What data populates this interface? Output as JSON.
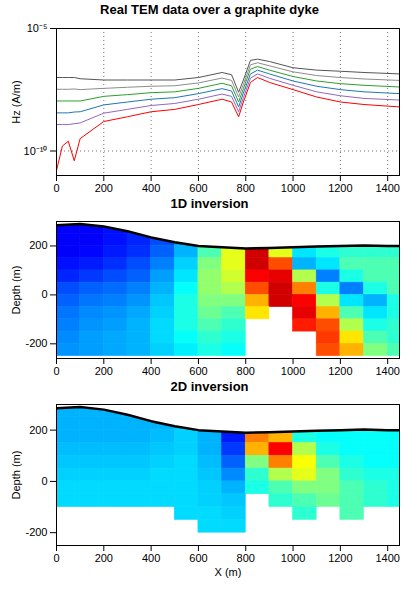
{
  "chart_data": [
    {
      "type": "line",
      "title": "Real TEM data over a graphite dyke",
      "x": [
        0,
        25,
        50,
        75,
        100,
        200,
        300,
        400,
        500,
        600,
        700,
        740,
        770,
        790,
        820,
        850,
        900,
        1000,
        1100,
        1200,
        1300,
        1450
      ],
      "series": [
        {
          "color": "#555555",
          "values": [
            1e-07,
            1e-07,
            1e-07,
            1e-07,
            8.9e-08,
            7.9e-08,
            7.9e-08,
            7.9e-08,
            7.9e-08,
            1e-07,
            1.6e-07,
            1.3e-07,
            2.5e-08,
            7.9e-08,
            5e-07,
            5.6e-07,
            4.5e-07,
            2.5e-07,
            2e-07,
            1.8e-07,
            1.6e-07,
            1.4e-07
          ]
        },
        {
          "color": "#8c8c8c",
          "values": [
            3.3e-08,
            3.3e-08,
            3.3e-08,
            3.4e-08,
            3.2e-08,
            3.6e-08,
            4e-08,
            4.4e-08,
            4.6e-08,
            6e-08,
            9.5e-08,
            7.6e-08,
            1.6e-08,
            5.2e-08,
            3.3e-07,
            4e-07,
            3e-07,
            1.7e-07,
            1.2e-07,
            1e-07,
            8.7e-08,
            7.6e-08
          ]
        },
        {
          "color": "#2ca02c",
          "values": [
            1.1e-08,
            1.1e-08,
            1.1e-08,
            1.1e-08,
            1.1e-08,
            1.7e-08,
            2e-08,
            2.4e-08,
            2.6e-08,
            3.6e-08,
            5.8e-08,
            4.6e-08,
            1e-08,
            3.5e-08,
            2.2e-07,
            2.8e-07,
            2e-07,
            1.1e-07,
            7.2e-08,
            5.6e-08,
            4.8e-08,
            4.1e-08
          ]
        },
        {
          "color": "#1f77b4",
          "values": [
            3.6e-09,
            3.6e-09,
            3.6e-09,
            3.9e-09,
            4e-09,
            7.6e-09,
            1e-08,
            1.3e-08,
            1.5e-08,
            2.2e-08,
            3.5e-08,
            2.8e-08,
            6.3e-09,
            2.3e-08,
            1.4e-07,
            2e-07,
            1.4e-07,
            7.2e-08,
            4.4e-08,
            3.2e-08,
            2.6e-08,
            2.2e-08
          ]
        },
        {
          "color": "#9467bd",
          "values": [
            1.2e-09,
            1.2e-09,
            1.2e-09,
            1.3e-09,
            1.4e-09,
            3.5e-09,
            5e-09,
            7.2e-09,
            8.7e-09,
            1.3e-08,
            2.1e-08,
            1.7e-08,
            4e-09,
            1.5e-08,
            9.5e-08,
            1.4e-07,
            9.3e-08,
            4.8e-08,
            2.6e-08,
            1.8e-08,
            1.4e-08,
            1.2e-08
          ]
        },
        {
          "color": "#ff0000",
          "values": [
            1.6e-11,
            1.6e-10,
            2.5e-10,
            4e-11,
            3.2e-10,
            1.6e-09,
            2.5e-09,
            4e-09,
            5e-09,
            7.9e-09,
            1.3e-08,
            1e-08,
            2.5e-09,
            1e-08,
            6.3e-08,
            1e-07,
            6.3e-08,
            3.2e-08,
            1.6e-08,
            1e-08,
            7.9e-09,
            6.3e-09
          ]
        }
      ],
      "xlim": [
        0,
        1450
      ],
      "xticks": [
        0,
        200,
        400,
        600,
        800,
        1000,
        1200,
        1400
      ],
      "ylim": [
        1e-11,
        1e-05
      ],
      "yticks": [
        {
          "value": 1e-10,
          "label": "10⁻¹⁰"
        },
        {
          "value": 1e-05,
          "label": "10⁻⁵"
        }
      ],
      "y_label": "Hz (A/m)",
      "log": "y",
      "grid": true
    },
    {
      "type": "heatmap",
      "title": "1D inversion",
      "x": [
        50,
        150,
        250,
        350,
        450,
        550,
        650,
        750,
        850,
        950,
        1050,
        1150,
        1250,
        1350,
        1450
      ],
      "depth": [
        275,
        225,
        175,
        125,
        75,
        25,
        -25,
        -75,
        -125,
        -175,
        -225
      ],
      "cells": [
        [
          0.12,
          0.12,
          0.14,
          0.16,
          0.2,
          0.25,
          0.35,
          0.5,
          0.8,
          0.45,
          0.4,
          0.4,
          0.4,
          0.4,
          0.4
        ],
        [
          0.12,
          0.12,
          0.14,
          0.16,
          0.2,
          0.28,
          0.4,
          0.55,
          0.85,
          0.5,
          0.4,
          0.4,
          0.4,
          0.4,
          0.4
        ],
        [
          0.12,
          0.13,
          0.15,
          0.17,
          0.22,
          0.3,
          0.45,
          0.6,
          0.92,
          0.6,
          0.35,
          0.4,
          0.42,
          0.42,
          0.42
        ],
        [
          0.14,
          0.15,
          0.17,
          0.2,
          0.25,
          0.33,
          0.5,
          0.6,
          0.92,
          0.8,
          0.3,
          0.35,
          0.45,
          0.45,
          0.45
        ],
        [
          0.16,
          0.18,
          0.2,
          0.22,
          0.28,
          0.35,
          0.52,
          0.58,
          0.88,
          0.9,
          0.55,
          0.25,
          0.4,
          0.45,
          0.45
        ],
        [
          0.2,
          0.22,
          0.23,
          0.25,
          0.3,
          0.38,
          0.52,
          0.55,
          0.8,
          0.92,
          0.75,
          0.4,
          0.25,
          0.4,
          0.45
        ],
        [
          0.22,
          0.24,
          0.25,
          0.27,
          0.32,
          0.4,
          0.5,
          0.5,
          0.7,
          0.92,
          0.88,
          0.55,
          0.35,
          0.3,
          0.4
        ],
        [
          0.24,
          0.26,
          0.27,
          0.29,
          0.33,
          0.4,
          0.48,
          0.45,
          0.65,
          null,
          0.9,
          0.7,
          0.45,
          0.35,
          0.4
        ],
        [
          0.25,
          0.27,
          0.28,
          0.3,
          0.34,
          0.4,
          0.45,
          0.42,
          null,
          null,
          0.85,
          0.8,
          0.55,
          0.4,
          0.42
        ],
        [
          0.26,
          0.28,
          0.29,
          0.3,
          0.34,
          0.38,
          0.42,
          0.4,
          null,
          null,
          null,
          0.82,
          0.65,
          0.45,
          0.42
        ],
        [
          0.27,
          0.28,
          0.29,
          0.3,
          0.33,
          0.36,
          0.4,
          0.38,
          null,
          null,
          null,
          0.8,
          0.7,
          0.5,
          0.45
        ]
      ],
      "color_range": [
        0,
        1
      ],
      "topography": {
        "x": [
          0,
          100,
          200,
          300,
          400,
          500,
          600,
          700,
          800,
          900,
          1000,
          1100,
          1200,
          1300,
          1400,
          1450
        ],
        "z": [
          285,
          290,
          280,
          260,
          235,
          215,
          200,
          195,
          190,
          192,
          195,
          198,
          200,
          202,
          200,
          200
        ]
      },
      "xlim": [
        0,
        1450
      ],
      "xticks": [
        0,
        200,
        400,
        600,
        800,
        1000,
        1200,
        1400
      ],
      "ylim": [
        -260,
        300
      ],
      "yticks": [
        -200,
        0,
        200
      ],
      "y_label": "Depth (m)"
    },
    {
      "type": "heatmap",
      "title": "2D inversion",
      "x": [
        50,
        150,
        250,
        350,
        450,
        550,
        650,
        750,
        850,
        950,
        1050,
        1150,
        1250,
        1350,
        1450
      ],
      "depth": [
        275,
        225,
        175,
        125,
        75,
        25,
        -25,
        -75,
        -125,
        -175,
        -225
      ],
      "cells": [
        [
          0.3,
          0.3,
          0.3,
          0.3,
          0.3,
          0.32,
          0.3,
          0.2,
          0.45,
          0.4,
          0.38,
          0.38,
          0.38,
          0.38,
          0.38
        ],
        [
          0.3,
          0.3,
          0.3,
          0.3,
          0.3,
          0.32,
          0.3,
          0.18,
          0.6,
          0.45,
          0.38,
          0.38,
          0.38,
          0.38,
          0.38
        ],
        [
          0.3,
          0.3,
          0.3,
          0.3,
          0.31,
          0.33,
          0.3,
          0.15,
          0.75,
          0.7,
          0.4,
          0.38,
          0.38,
          0.38,
          0.38
        ],
        [
          0.31,
          0.31,
          0.31,
          0.31,
          0.32,
          0.33,
          0.3,
          0.18,
          0.7,
          0.88,
          0.55,
          0.4,
          0.38,
          0.38,
          0.38
        ],
        [
          0.32,
          0.32,
          0.32,
          0.32,
          0.33,
          0.34,
          0.31,
          0.22,
          0.5,
          0.75,
          0.62,
          0.45,
          0.4,
          0.38,
          0.38
        ],
        [
          0.33,
          0.33,
          0.33,
          0.33,
          0.34,
          0.34,
          0.32,
          0.26,
          0.42,
          0.55,
          0.6,
          0.5,
          0.42,
          0.4,
          0.4
        ],
        [
          0.34,
          0.34,
          0.34,
          0.34,
          0.34,
          0.34,
          0.33,
          0.3,
          0.4,
          0.45,
          0.5,
          0.5,
          0.45,
          0.42,
          0.4
        ],
        [
          0.34,
          0.34,
          0.34,
          0.34,
          0.34,
          0.34,
          0.33,
          0.32,
          null,
          0.42,
          0.45,
          0.48,
          0.45,
          0.42,
          0.4
        ],
        [
          null,
          null,
          null,
          null,
          null,
          0.34,
          0.34,
          0.33,
          null,
          null,
          0.42,
          null,
          0.45,
          null,
          null
        ],
        [
          null,
          null,
          null,
          null,
          null,
          null,
          0.34,
          0.34,
          null,
          null,
          null,
          null,
          null,
          null,
          null
        ],
        [
          null,
          null,
          null,
          null,
          null,
          null,
          null,
          null,
          null,
          null,
          null,
          null,
          null,
          null,
          null
        ]
      ],
      "color_range": [
        0,
        1
      ],
      "topography": {
        "x": [
          0,
          100,
          200,
          300,
          400,
          500,
          600,
          700,
          800,
          900,
          1000,
          1100,
          1200,
          1300,
          1400,
          1450
        ],
        "z": [
          285,
          290,
          280,
          260,
          235,
          215,
          200,
          195,
          190,
          192,
          195,
          198,
          200,
          202,
          200,
          200
        ]
      },
      "xlim": [
        0,
        1450
      ],
      "xticks": [
        0,
        200,
        400,
        600,
        800,
        1000,
        1200,
        1400
      ],
      "ylim": [
        -250,
        300
      ],
      "yticks": [
        -200,
        0,
        200
      ],
      "y_label": "Depth (m)",
      "x_label": "X (m)"
    }
  ]
}
